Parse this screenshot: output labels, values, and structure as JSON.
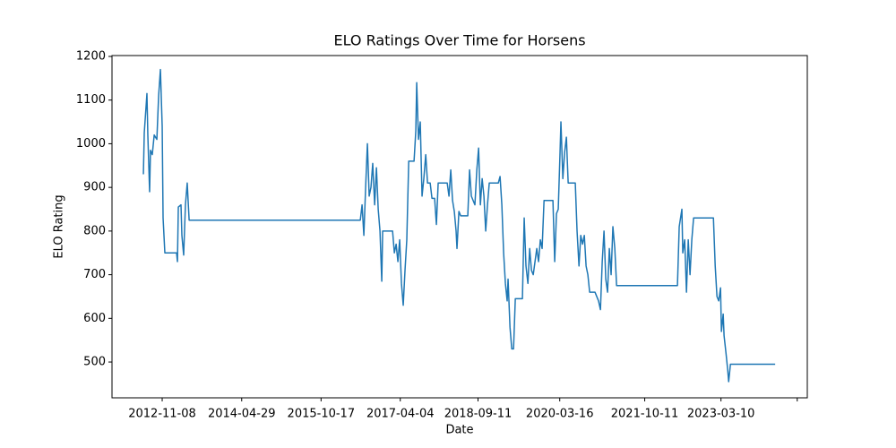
{
  "chart_data": {
    "type": "line",
    "title": "ELO Ratings Over Time for Horsens",
    "x_label": "Date",
    "y_label": "ELO Rating",
    "grid": false,
    "xlim": [
      "2011-12-05",
      "2024-10-13"
    ],
    "ylim": [
      418,
      1202
    ],
    "xticks": [
      "2012-11-08",
      "2014-04-29",
      "2015-10-17",
      "2017-04-04",
      "2018-09-11",
      "2020-03-16",
      "2021-10-11",
      "2023-03-10",
      {
        "value": "2024-08-06",
        "label": null
      }
    ],
    "yticks": [
      500,
      600,
      700,
      800,
      900,
      1000,
      1100,
      1200
    ],
    "x": [
      "2012-07-04",
      "2012-07-10",
      "2012-07-28",
      "2012-08-03",
      "2012-08-15",
      "2012-08-21",
      "2012-09-02",
      "2012-09-15",
      "2012-10-03",
      "2012-10-15",
      "2012-10-27",
      "2012-11-08",
      "2012-11-14",
      "2012-11-26",
      "2013-02-13",
      "2013-02-19",
      "2013-02-25",
      "2013-03-15",
      "2013-03-21",
      "2013-04-02",
      "2013-04-14",
      "2013-04-26",
      "2013-05-09",
      "2016-07-08",
      "2016-07-20",
      "2016-08-01",
      "2016-08-13",
      "2016-08-25",
      "2016-09-06",
      "2016-09-18",
      "2016-09-30",
      "2016-10-13",
      "2016-10-25",
      "2016-11-06",
      "2016-11-18",
      "2016-11-30",
      "2016-12-06",
      "2017-02-11",
      "2017-02-23",
      "2017-03-07",
      "2017-03-19",
      "2017-03-31",
      "2017-04-12",
      "2017-04-24",
      "2017-05-06",
      "2017-05-18",
      "2017-05-31",
      "2017-07-06",
      "2017-07-18",
      "2017-07-24",
      "2017-08-05",
      "2017-08-17",
      "2017-08-29",
      "2017-09-10",
      "2017-09-23",
      "2017-10-05",
      "2017-10-23",
      "2017-11-04",
      "2017-11-22",
      "2017-12-04",
      "2017-12-16",
      "2018-02-15",
      "2018-02-27",
      "2018-03-11",
      "2018-03-23",
      "2018-04-04",
      "2018-04-16",
      "2018-04-22",
      "2018-05-05",
      "2018-05-17",
      "2018-07-04",
      "2018-07-16",
      "2018-07-28",
      "2018-08-21",
      "2018-09-03",
      "2018-09-15",
      "2018-09-27",
      "2018-10-09",
      "2018-10-21",
      "2018-11-02",
      "2018-11-14",
      "2018-11-26",
      "2019-01-26",
      "2019-02-07",
      "2019-02-19",
      "2019-03-03",
      "2019-03-15",
      "2019-03-27",
      "2019-04-02",
      "2019-04-15",
      "2019-04-27",
      "2019-05-09",
      "2019-05-21",
      "2019-07-08",
      "2019-07-20",
      "2019-08-01",
      "2019-08-14",
      "2019-08-26",
      "2019-09-07",
      "2019-09-19",
      "2019-10-01",
      "2019-10-13",
      "2019-10-25",
      "2019-11-06",
      "2019-11-18",
      "2019-12-01",
      "2020-01-30",
      "2020-02-11",
      "2020-02-23",
      "2020-03-06",
      "2020-03-18",
      "2020-03-24",
      "2020-04-06",
      "2020-04-18",
      "2020-04-30",
      "2020-05-12",
      "2020-06-29",
      "2020-07-11",
      "2020-07-24",
      "2020-08-05",
      "2020-08-17",
      "2020-08-29",
      "2020-09-10",
      "2020-09-22",
      "2020-10-04",
      "2020-11-09",
      "2020-12-03",
      "2020-12-16",
      "2020-12-28",
      "2021-01-09",
      "2021-01-21",
      "2021-02-02",
      "2021-02-14",
      "2021-02-26",
      "2021-03-10",
      "2021-03-23",
      "2021-04-04",
      "2022-05-20",
      "2022-06-01",
      "2022-06-19",
      "2022-06-25",
      "2022-07-08",
      "2022-07-20",
      "2022-08-01",
      "2022-08-13",
      "2022-08-25",
      "2022-09-06",
      "2023-01-18",
      "2023-01-30",
      "2023-02-11",
      "2023-02-23",
      "2023-03-07",
      "2023-03-13",
      "2023-03-25",
      "2023-03-31",
      "2023-04-13",
      "2023-04-25",
      "2023-05-01",
      "2023-05-13",
      "2024-03-10"
    ],
    "series": [
      {
        "name": "Horsens",
        "color": "#1f77b4",
        "values": [
          930,
          1025,
          1115,
          1020,
          890,
          985,
          975,
          1020,
          1010,
          1110,
          1170,
          1040,
          830,
          750,
          750,
          730,
          855,
          860,
          790,
          745,
          860,
          910,
          825,
          825,
          860,
          790,
          900,
          1000,
          880,
          900,
          955,
          860,
          945,
          850,
          800,
          685,
          800,
          800,
          750,
          770,
          730,
          780,
          680,
          630,
          710,
          780,
          960,
          960,
          1030,
          1140,
          1010,
          1050,
          880,
          920,
          975,
          910,
          910,
          875,
          875,
          815,
          910,
          910,
          880,
          940,
          870,
          845,
          800,
          760,
          845,
          835,
          835,
          940,
          880,
          860,
          940,
          990,
          860,
          920,
          880,
          800,
          860,
          910,
          910,
          925,
          860,
          750,
          680,
          640,
          690,
          580,
          530,
          530,
          645,
          645,
          830,
          720,
          680,
          760,
          710,
          700,
          730,
          760,
          730,
          780,
          760,
          870,
          870,
          730,
          840,
          850,
          980,
          1050,
          920,
          980,
          1015,
          910,
          910,
          800,
          720,
          790,
          770,
          790,
          720,
          700,
          660,
          660,
          640,
          620,
          730,
          800,
          690,
          660,
          760,
          700,
          810,
          760,
          675,
          675,
          810,
          850,
          750,
          780,
          660,
          780,
          700,
          780,
          830,
          830,
          720,
          650,
          640,
          670,
          570,
          610,
          560,
          520,
          480,
          455,
          495,
          495
        ]
      }
    ]
  }
}
